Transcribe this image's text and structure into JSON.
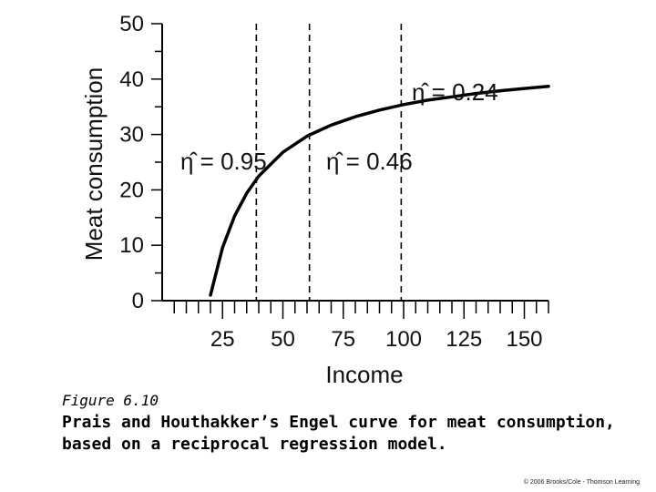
{
  "chart_data": {
    "type": "line",
    "xlabel": "Income",
    "ylabel": "Meat consumption",
    "xlim": [
      0,
      160
    ],
    "ylim": [
      0,
      50
    ],
    "x_ticks": [
      25,
      50,
      75,
      100,
      125,
      150
    ],
    "y_ticks": [
      0,
      10,
      20,
      30,
      40,
      50
    ],
    "grid": false,
    "series": [
      {
        "x": [
          20,
          25,
          30,
          35,
          40,
          50,
          60,
          70,
          80,
          90,
          100,
          110,
          120,
          130,
          140,
          150,
          160
        ],
        "y": [
          1,
          9.6,
          15.3,
          19.4,
          22.5,
          26.8,
          29.7,
          31.7,
          33.2,
          34.4,
          35.4,
          36.2,
          36.8,
          37.4,
          37.9,
          38.3,
          38.7
        ]
      }
    ],
    "reference_lines": [
      {
        "x": 39,
        "label": "η̂ = 0.95"
      },
      {
        "x": 61,
        "label": "η̂ = 0.46"
      },
      {
        "x": 99,
        "label": "η̂ = 0.24"
      }
    ]
  },
  "figure_label": "Figure 6.10",
  "caption": "Prais and Houthakker’s Engel curve for meat consumption, based on a reciprocal regression model.",
  "copyright": "© 2006 Brooks/Cole - Thomson Learning"
}
